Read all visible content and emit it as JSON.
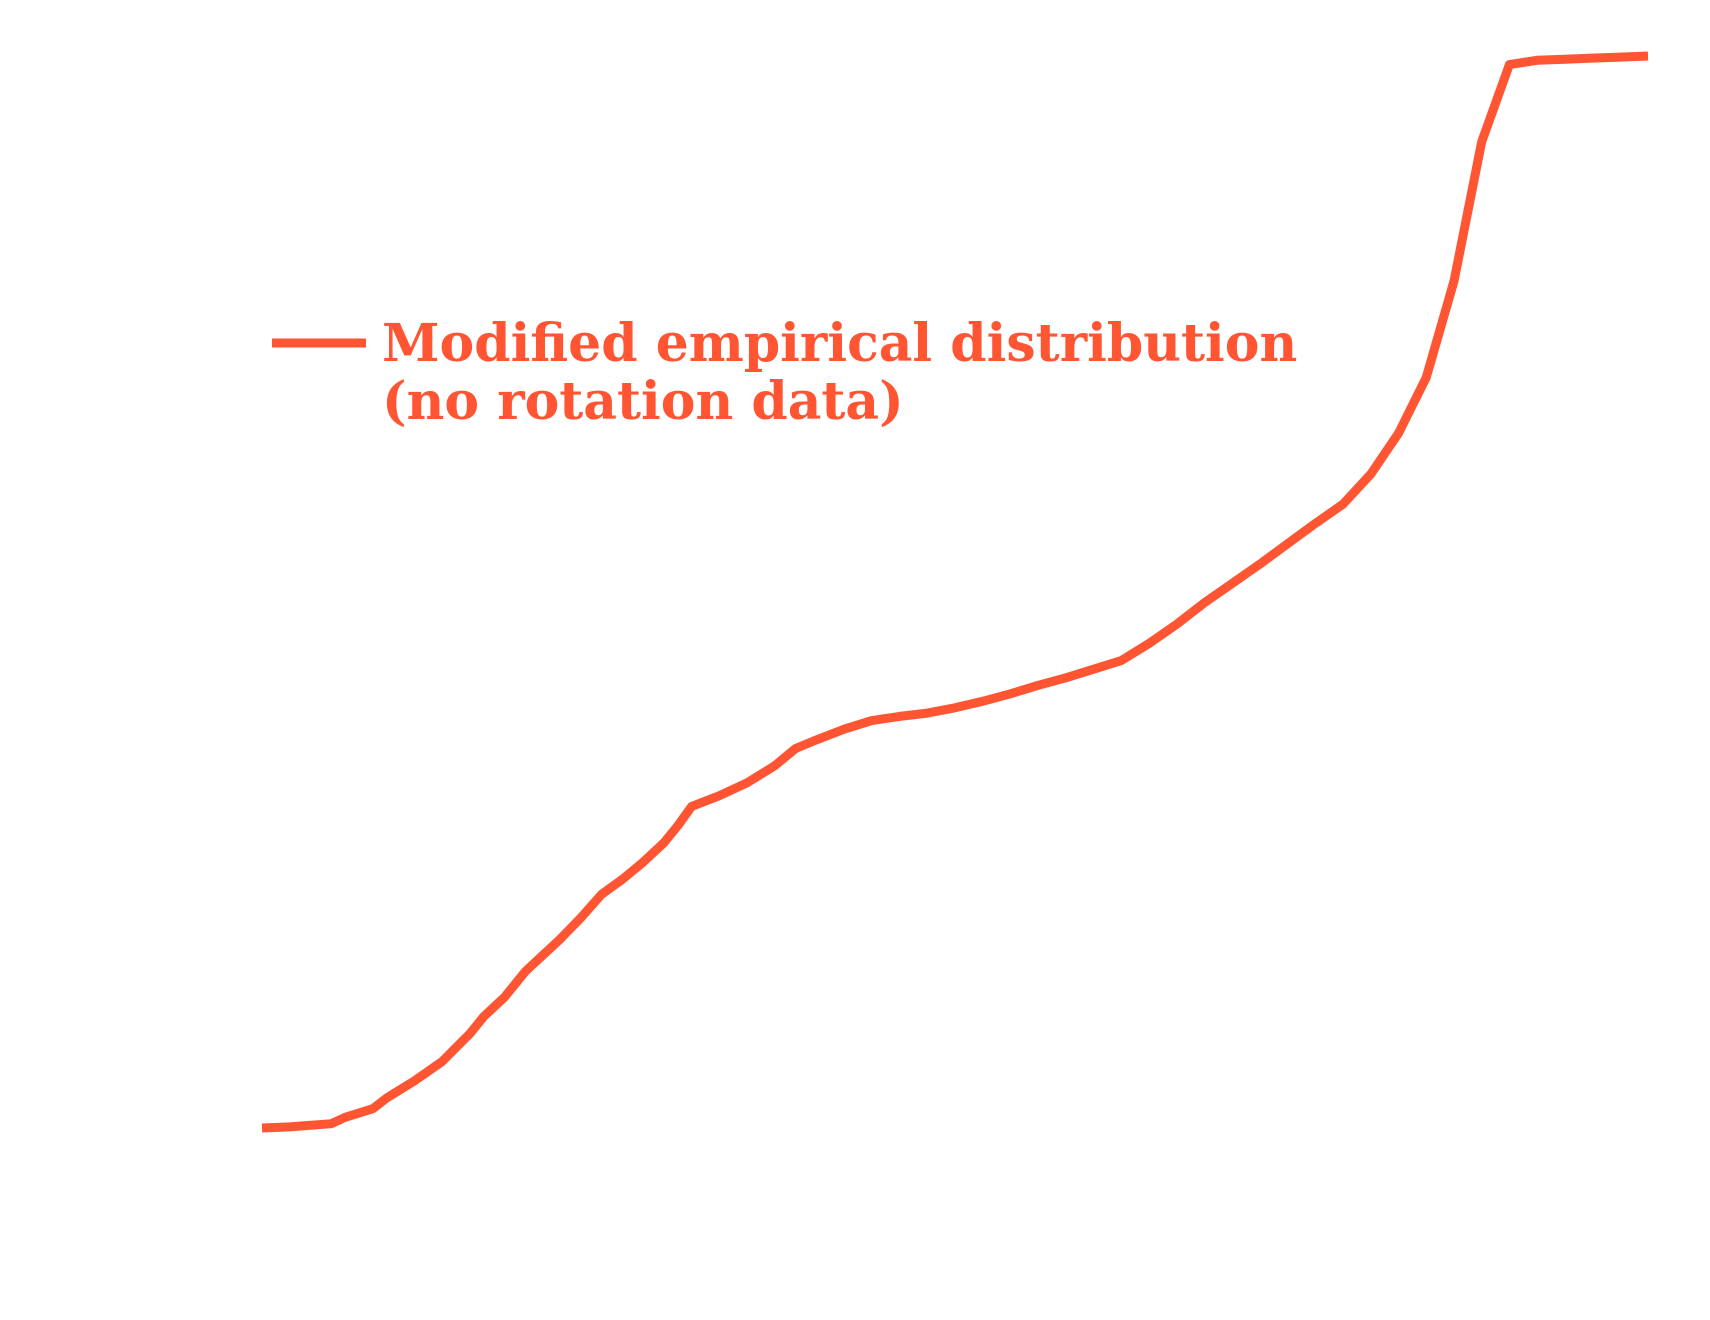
{
  "chart_data": {
    "type": "line",
    "title": "",
    "xlabel": "",
    "ylabel": "",
    "xlim": [
      0,
      1
    ],
    "ylim": [
      0,
      1
    ],
    "grid": false,
    "legend": {
      "placement": "upper-left",
      "entries": [
        {
          "lines": [
            "Modified empirical distribution",
            "(no rotation data)"
          ]
        }
      ]
    },
    "series": [
      {
        "name": "Modified empirical distribution (no rotation data)",
        "color": "#ff5533",
        "x": [
          0.0,
          0.02,
          0.05,
          0.06,
          0.08,
          0.09,
          0.11,
          0.13,
          0.14,
          0.15,
          0.16,
          0.175,
          0.19,
          0.2,
          0.215,
          0.23,
          0.245,
          0.26,
          0.275,
          0.29,
          0.3,
          0.31,
          0.33,
          0.35,
          0.37,
          0.385,
          0.4,
          0.42,
          0.44,
          0.46,
          0.48,
          0.5,
          0.52,
          0.54,
          0.56,
          0.58,
          0.6,
          0.62,
          0.64,
          0.66,
          0.68,
          0.7,
          0.72,
          0.74,
          0.76,
          0.78,
          0.8,
          0.82,
          0.84,
          0.86,
          0.88,
          0.9,
          0.92,
          0.94,
          0.96,
          0.98,
          1.0
        ],
        "y": [
          0.0,
          0.001,
          0.004,
          0.01,
          0.018,
          0.028,
          0.044,
          0.062,
          0.075,
          0.088,
          0.104,
          0.122,
          0.146,
          0.158,
          0.176,
          0.196,
          0.218,
          0.232,
          0.248,
          0.266,
          0.282,
          0.3,
          0.31,
          0.322,
          0.338,
          0.354,
          0.362,
          0.372,
          0.38,
          0.384,
          0.387,
          0.392,
          0.398,
          0.405,
          0.413,
          0.42,
          0.428,
          0.436,
          0.452,
          0.47,
          0.49,
          0.508,
          0.526,
          0.545,
          0.564,
          0.582,
          0.61,
          0.648,
          0.7,
          0.79,
          0.92,
          0.992,
          0.996,
          0.997,
          0.998,
          0.999,
          1.0
        ]
      }
    ]
  }
}
